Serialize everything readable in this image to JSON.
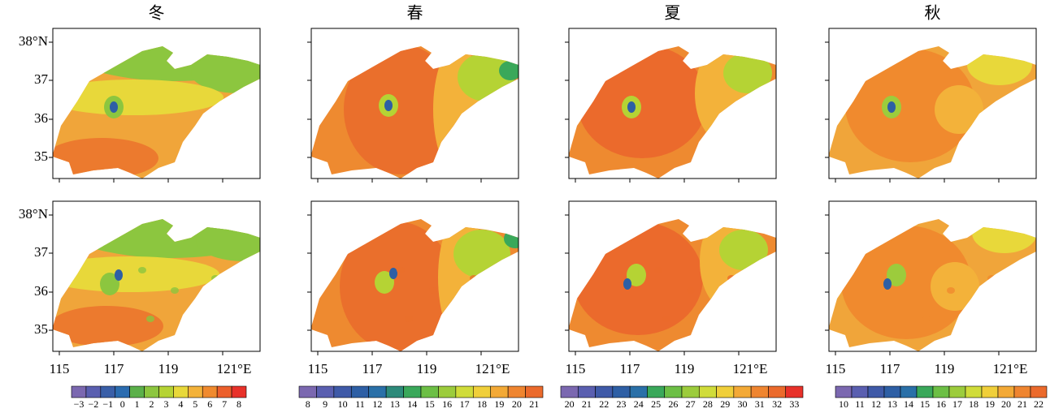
{
  "titles": [
    "冬",
    "春",
    "夏",
    "秋"
  ],
  "axes": {
    "yticks": [
      "38°N",
      "37",
      "36",
      "35"
    ],
    "xticks": [
      "115",
      "117",
      "119",
      "121°E"
    ]
  },
  "colorbars": [
    {
      "labels": [
        "−3",
        "−2",
        "−1",
        "0",
        "1",
        "2",
        "3",
        "4",
        "5",
        "6",
        "7",
        "8"
      ],
      "colors": [
        "#7b68b0",
        "#5a5fb0",
        "#3a5fa8",
        "#2b6cb0",
        "#5bb04a",
        "#8cc63f",
        "#b5d334",
        "#e8d83a",
        "#f3b23a",
        "#f08a2e",
        "#ec5f2b",
        "#e8312a"
      ]
    },
    {
      "labels": [
        "8",
        "9",
        "10",
        "11",
        "12",
        "13",
        "14",
        "15",
        "16",
        "17",
        "18",
        "19",
        "20",
        "21"
      ],
      "colors": [
        "#7b68b0",
        "#5a5fb0",
        "#3f5aa8",
        "#2e5fa5",
        "#2a70a8",
        "#2d8a7a",
        "#3aa85a",
        "#6cbf45",
        "#9ccc3c",
        "#d0dc3a",
        "#f0cf3a",
        "#f3a936",
        "#ef8530",
        "#eb6a2c"
      ]
    },
    {
      "labels": [
        "20",
        "21",
        "22",
        "23",
        "24",
        "25",
        "26",
        "27",
        "28",
        "29",
        "30",
        "31",
        "32",
        "33"
      ],
      "colors": [
        "#7b68b0",
        "#5a5fb0",
        "#3f5aa8",
        "#2e5fa5",
        "#2a70a8",
        "#3aa85a",
        "#6cbf45",
        "#9ccc3c",
        "#d0dc3a",
        "#f0cf3a",
        "#f3a936",
        "#ef8530",
        "#eb6a2c",
        "#e8312a"
      ]
    },
    {
      "labels": [
        "10",
        "11",
        "12",
        "13",
        "14",
        "15",
        "16",
        "17",
        "18",
        "19",
        "20",
        "21",
        "22"
      ],
      "colors": [
        "#7b68b0",
        "#5a5fb0",
        "#3f5aa8",
        "#2e5fa5",
        "#2a70a8",
        "#3aa85a",
        "#6cbf45",
        "#9ccc3c",
        "#d0dc3a",
        "#f0cf3a",
        "#f3a936",
        "#ef8530",
        "#eb6a2c"
      ]
    }
  ]
}
